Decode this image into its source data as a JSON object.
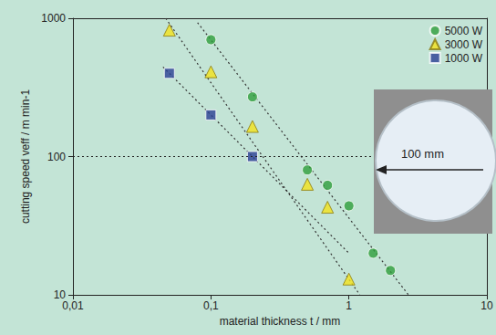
{
  "chart_data": {
    "type": "scatter",
    "x_label": "material thickness t / mm",
    "y_label": "cutting speed veff / m min-1",
    "log": true,
    "grid": false,
    "legend": "top-right",
    "xlim": [
      0.01,
      10
    ],
    "ylim": [
      10,
      1000
    ],
    "xticks": [
      {
        "value": 0.01,
        "label": "0,01"
      },
      {
        "value": 0.1,
        "label": "0,1"
      },
      1,
      10
    ],
    "yticks": [
      10,
      100,
      1000
    ],
    "reference_line": 100,
    "annotation": "100 mm",
    "series": [
      {
        "name": "5000 W",
        "color": "#2f9e3c",
        "marker": "circle",
        "x": [
          0.1,
          0.2,
          0.5,
          0.7,
          1.0,
          1.5,
          2.0
        ],
        "values": [
          700,
          270,
          80,
          62,
          44,
          20,
          15
        ],
        "trend": {
          "x": [
            0.08,
            2.7
          ],
          "y": [
            930,
            10
          ]
        }
      },
      {
        "name": "3000 W",
        "color": "#f4e21c",
        "marker": "triangle",
        "x": [
          0.05,
          0.1,
          0.2,
          0.5,
          0.7,
          1.0
        ],
        "values": [
          820,
          410,
          165,
          63,
          43,
          13
        ],
        "trend": {
          "x": [
            0.047,
            1.2
          ],
          "y": [
            1000,
            10
          ]
        }
      },
      {
        "name": "1000 W",
        "color": "#2b3f93",
        "marker": "square",
        "x": [
          0.05,
          0.1,
          0.2
        ],
        "values": [
          400,
          200,
          100
        ],
        "trend": {
          "x": [
            0.045,
            1.0
          ],
          "y": [
            444,
            20
          ]
        }
      }
    ]
  }
}
